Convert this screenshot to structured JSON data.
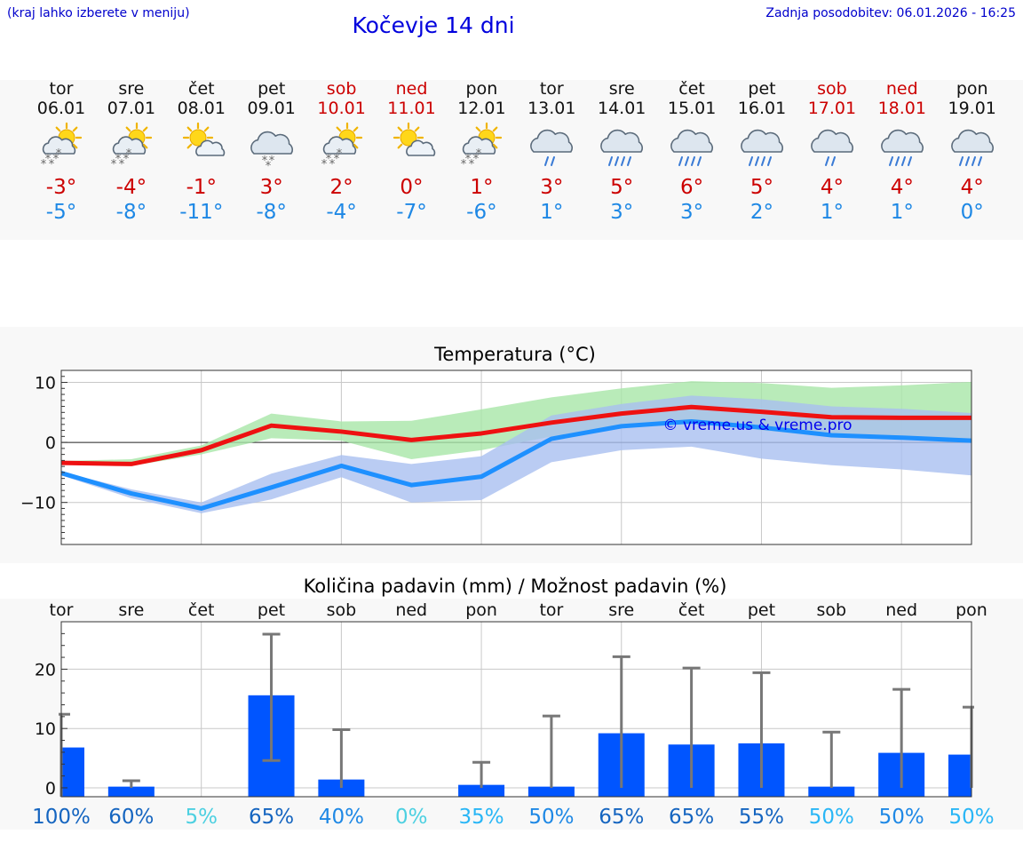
{
  "header": {
    "hint": "(kraj lahko izberete v meniju)",
    "title": "Kočevje 14 dni",
    "updated": "Zadnja posodobitev: 06.01.2026 - 16:25"
  },
  "days": [
    {
      "name": "tor",
      "date": "06.01",
      "weekend": false,
      "icon": "sun-cloud-snow-icon",
      "tmax": "-3°",
      "tmin": "-5°"
    },
    {
      "name": "sre",
      "date": "07.01",
      "weekend": false,
      "icon": "sun-cloud-snow-icon",
      "tmax": "-4°",
      "tmin": "-8°"
    },
    {
      "name": "čet",
      "date": "08.01",
      "weekend": false,
      "icon": "sun-cloud-icon",
      "tmax": "-1°",
      "tmin": "-11°"
    },
    {
      "name": "pet",
      "date": "09.01",
      "weekend": false,
      "icon": "cloud-snow-icon",
      "tmax": "3°",
      "tmin": "-8°"
    },
    {
      "name": "sob",
      "date": "10.01",
      "weekend": true,
      "icon": "sun-cloud-snow-icon",
      "tmax": "2°",
      "tmin": "-4°"
    },
    {
      "name": "ned",
      "date": "11.01",
      "weekend": true,
      "icon": "sun-cloud-icon",
      "tmax": "0°",
      "tmin": "-7°"
    },
    {
      "name": "pon",
      "date": "12.01",
      "weekend": false,
      "icon": "sun-cloud-snow-icon",
      "tmax": "1°",
      "tmin": "-6°"
    },
    {
      "name": "tor",
      "date": "13.01",
      "weekend": false,
      "icon": "cloud-rain-icon",
      "tmax": "3°",
      "tmin": "1°"
    },
    {
      "name": "sre",
      "date": "14.01",
      "weekend": false,
      "icon": "cloud-heavy-rain-icon",
      "tmax": "5°",
      "tmin": "3°"
    },
    {
      "name": "čet",
      "date": "15.01",
      "weekend": false,
      "icon": "cloud-heavy-rain-icon",
      "tmax": "6°",
      "tmin": "3°"
    },
    {
      "name": "pet",
      "date": "16.01",
      "weekend": false,
      "icon": "cloud-heavy-rain-icon",
      "tmax": "5°",
      "tmin": "2°"
    },
    {
      "name": "sob",
      "date": "17.01",
      "weekend": true,
      "icon": "cloud-rain-icon",
      "tmax": "4°",
      "tmin": "1°"
    },
    {
      "name": "ned",
      "date": "18.01",
      "weekend": true,
      "icon": "cloud-heavy-rain-icon",
      "tmax": "4°",
      "tmin": "1°"
    },
    {
      "name": "pon",
      "date": "19.01",
      "weekend": false,
      "icon": "cloud-heavy-rain-icon",
      "tmax": "4°",
      "tmin": "0°"
    }
  ],
  "chart_data": [
    {
      "type": "line",
      "title": "Temperatura (°C)",
      "watermark": "© vreme.us & vreme.pro",
      "ylim": [
        -17,
        12
      ],
      "yticks": [
        10,
        0,
        -10
      ],
      "ytick_labels": [
        "10",
        "0",
        "−10"
      ],
      "x": [
        0,
        1,
        2,
        3,
        4,
        5,
        6,
        7,
        8,
        9,
        10,
        11,
        12,
        13
      ],
      "series": [
        {
          "name": "max",
          "color": "#ee1111",
          "values": [
            -3.4,
            -3.6,
            -1.3,
            2.8,
            1.8,
            0.4,
            1.5,
            3.3,
            4.8,
            5.9,
            5.1,
            4.2,
            4.1,
            4.1
          ],
          "band_color": "#a8e6a8",
          "band_low": [
            -3.6,
            -3.9,
            -2.0,
            0.7,
            0.3,
            -2.8,
            -1.3,
            1.0,
            2.6,
            3.6,
            2.0,
            0.9,
            0.6,
            0.2
          ],
          "band_high": [
            -3.1,
            -2.8,
            -0.5,
            4.8,
            3.5,
            3.6,
            5.5,
            7.5,
            9.0,
            10.2,
            9.9,
            9.1,
            9.5,
            10.1
          ]
        },
        {
          "name": "min",
          "color": "#1e90ff",
          "values": [
            -5.1,
            -8.5,
            -11.0,
            -7.5,
            -3.9,
            -7.1,
            -5.7,
            0.6,
            2.7,
            3.5,
            2.5,
            1.2,
            0.8,
            0.3
          ],
          "band_color": "#a9bff0",
          "band_low": [
            -5.5,
            -9.3,
            -11.8,
            -9.5,
            -5.8,
            -10.0,
            -9.6,
            -3.3,
            -1.3,
            -0.7,
            -2.7,
            -3.8,
            -4.5,
            -5.5
          ],
          "band_high": [
            -4.9,
            -7.8,
            -10.0,
            -5.2,
            -2.1,
            -3.6,
            -2.3,
            4.5,
            6.4,
            7.8,
            7.2,
            6.0,
            5.6,
            4.9
          ]
        }
      ]
    },
    {
      "type": "bar",
      "title": "Količina padavin (mm) / Možnost padavin (%)",
      "categories": [
        "tor",
        "sre",
        "čet",
        "pet",
        "sob",
        "ned",
        "pon",
        "tor",
        "sre",
        "čet",
        "pet",
        "sob",
        "ned",
        "pon"
      ],
      "ylim": [
        -1.5,
        28
      ],
      "yticks": [
        20,
        10,
        0
      ],
      "values": [
        6.8,
        0.2,
        0.0,
        15.6,
        1.4,
        0.0,
        0.5,
        0.2,
        9.2,
        7.3,
        7.5,
        0.2,
        5.9,
        5.6
      ],
      "err_low": [
        null,
        0.0,
        0.0,
        4.6,
        0.0,
        0.0,
        0.0,
        0.0,
        0.0,
        0.0,
        0.0,
        0.0,
        0.0,
        0.0
      ],
      "err_high": [
        12.4,
        1.2,
        0.0,
        25.9,
        9.8,
        0.0,
        4.3,
        12.1,
        22.1,
        20.2,
        19.4,
        9.4,
        16.6,
        13.6
      ],
      "probability": [
        "100%",
        "60%",
        "5%",
        "65%",
        "40%",
        "0%",
        "35%",
        "50%",
        "65%",
        "65%",
        "55%",
        "50%",
        "50%",
        "50%"
      ],
      "probability_colors": [
        "#1565c0",
        "#1565c0",
        "#4dd0e1",
        "#1565c0",
        "#1e88e5",
        "#4dd0e1",
        "#29b6f6",
        "#1e88e5",
        "#1565c0",
        "#1565c0",
        "#1565c0",
        "#29b6f6",
        "#1e88e5",
        "#29b6f6"
      ],
      "bar_color": "#0055ff",
      "errorbar_color": "#777777"
    }
  ]
}
